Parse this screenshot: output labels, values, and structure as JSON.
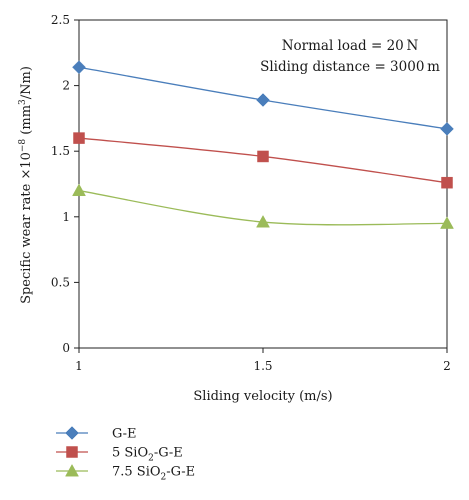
{
  "chart_data": {
    "type": "line",
    "x": [
      1,
      1.5,
      2
    ],
    "xticks": [
      "1",
      "1.5",
      "2"
    ],
    "yticks": [
      "0",
      "0.5",
      "1",
      "1.5",
      "2",
      "2.5"
    ],
    "xlim": [
      1,
      2
    ],
    "ylim": [
      0,
      2.5
    ],
    "xlabel": "Sliding velocity (m/s)",
    "ylabel_main": "Specific wear rate ×10",
    "ylabel_exp": "−8",
    "ylabel_unit_open": " (mm",
    "ylabel_unit_exp": "3",
    "ylabel_unit_close": "/Nm)",
    "annotations": [
      "Normal load = 20 N",
      "Sliding distance = 3000 m"
    ],
    "grid": false,
    "legend_position": "bottom-left",
    "series": [
      {
        "name": "G-E",
        "name_parts": [
          "G-E"
        ],
        "values": [
          2.14,
          1.89,
          1.67
        ],
        "color": "#4a7ebb",
        "marker": "diamond"
      },
      {
        "name": "5 SiO2-G-E",
        "name_parts": [
          "5 SiO",
          "2",
          "-G-E"
        ],
        "values": [
          1.6,
          1.46,
          1.26
        ],
        "color": "#c0504d",
        "marker": "square"
      },
      {
        "name": "7.5 SiO2-G-E",
        "name_parts": [
          "7.5 SiO",
          "2",
          "-G-E"
        ],
        "values": [
          1.2,
          0.96,
          0.95
        ],
        "color": "#9bbb59",
        "marker": "triangle"
      }
    ]
  }
}
